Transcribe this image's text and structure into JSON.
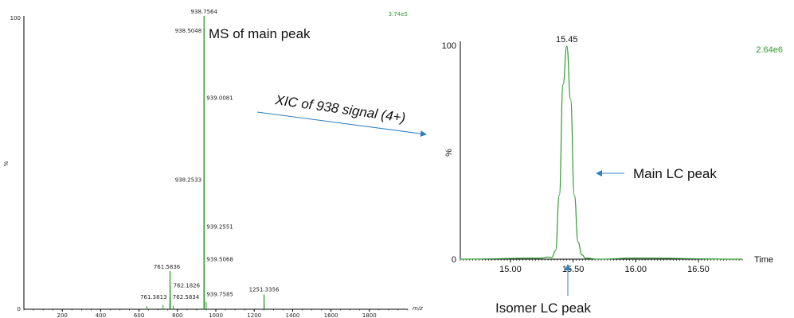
{
  "chart_data": [
    {
      "type": "line",
      "title": "",
      "xlabel": "m/z",
      "ylabel": "%",
      "xlim": [
        0,
        2000
      ],
      "ylim": [
        0,
        100
      ],
      "intensity_label": "3.74e5",
      "x_ticks": [
        "200",
        "400",
        "600",
        "800",
        "1000",
        "1200",
        "1400",
        "1600",
        "1800"
      ],
      "y_ticks": [
        "0",
        "100"
      ],
      "annotation": "MS of main peak",
      "peaks": [
        {
          "mz": 938.7564,
          "y": 100,
          "label": "938.7564"
        },
        {
          "mz": 938.5048,
          "y": 96,
          "label": "938.5048"
        },
        {
          "mz": 939.0081,
          "y": 72,
          "label": "939.0081"
        },
        {
          "mz": 938.2533,
          "y": 44,
          "label": "938.2533"
        },
        {
          "mz": 939.2551,
          "y": 28,
          "label": "939.2551"
        },
        {
          "mz": 939.5068,
          "y": 17,
          "label": "939.5068"
        },
        {
          "mz": 939.7585,
          "y": 5,
          "label": "939.7585"
        },
        {
          "mz": 761.5836,
          "y": 13,
          "label": "761.5836"
        },
        {
          "mz": 762.1826,
          "y": 8,
          "label": "762.1826"
        },
        {
          "mz": 761.3813,
          "y": 4,
          "label": "761.3813"
        },
        {
          "mz": 762.5834,
          "y": 4,
          "label": "762.5834"
        },
        {
          "mz": 1251.3356,
          "y": 5,
          "label": "1251.3356"
        }
      ]
    },
    {
      "type": "line",
      "title": "",
      "xlabel": "Time",
      "ylabel": "%",
      "xlim": [
        14.6,
        16.85
      ],
      "ylim": [
        0,
        100
      ],
      "intensity_label": "2.64e6",
      "x_ticks": [
        "15.00",
        "15.50",
        "16.00",
        "16.50"
      ],
      "y_ticks": [
        "0",
        "100"
      ],
      "apex_label": "15.45",
      "x": [
        14.6,
        15.25,
        15.3,
        15.33,
        15.36,
        15.39,
        15.42,
        15.45,
        15.48,
        15.51,
        15.54,
        15.57,
        15.6,
        15.7,
        16.0,
        16.85
      ],
      "y": [
        0,
        0.5,
        1,
        0.8,
        4,
        30,
        82,
        100,
        75,
        30,
        8,
        2,
        0.5,
        0,
        0.5,
        0
      ],
      "annotations": [
        "Main LC peak",
        "Isomer LC peak"
      ]
    }
  ],
  "connector_label": "XIC of 938 signal (4+)",
  "colors": {
    "trace": "#2e9a2e",
    "arrow": "#2f7fc1",
    "axis": "#000000"
  }
}
